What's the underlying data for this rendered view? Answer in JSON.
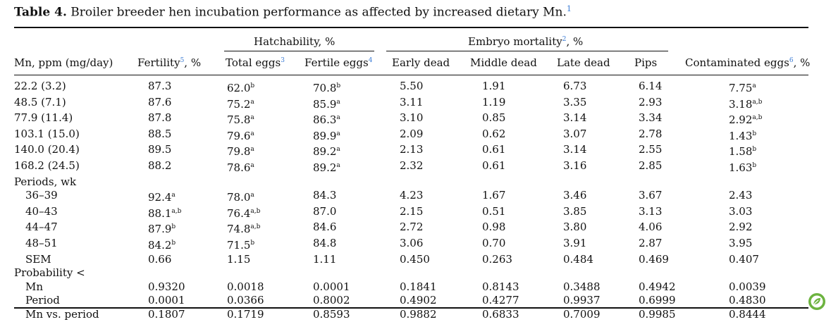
{
  "caption": {
    "label": "Table 4.",
    "text": "Broiler breeder hen incubation performance as affected by increased dietary Mn.",
    "footnote": "1"
  },
  "headers": {
    "group_hatchability": "Hatchability, %",
    "group_embryo": "Embryo mortality",
    "group_embryo_note": "2",
    "group_embryo_suffix": ", %",
    "mn": "Mn, ppm (mg/day)",
    "fertility": "Fertility",
    "fertility_note": "5",
    "fertility_suffix": ", %",
    "total_eggs": "Total eggs",
    "total_eggs_note": "3",
    "fertile_eggs": "Fertile eggs",
    "fertile_eggs_note": "4",
    "early_dead": "Early dead",
    "middle_dead": "Middle dead",
    "late_dead": "Late dead",
    "pips": "Pips",
    "contaminated": "Contaminated eggs",
    "contaminated_note": "6",
    "contaminated_suffix": ", %"
  },
  "rows": [
    {
      "label": "22.2 (3.2)",
      "indent": false,
      "cells": [
        [
          "87.3",
          ""
        ],
        [
          "62.0",
          "b"
        ],
        [
          "70.8",
          "b"
        ],
        [
          "5.50",
          ""
        ],
        [
          "1.91",
          ""
        ],
        [
          "6.73",
          ""
        ],
        [
          "6.14",
          ""
        ],
        [
          "7.75",
          "a"
        ]
      ]
    },
    {
      "label": "48.5 (7.1)",
      "indent": false,
      "cells": [
        [
          "87.6",
          ""
        ],
        [
          "75.2",
          "a"
        ],
        [
          "85.9",
          "a"
        ],
        [
          "3.11",
          ""
        ],
        [
          "1.19",
          ""
        ],
        [
          "3.35",
          ""
        ],
        [
          "2.93",
          ""
        ],
        [
          "3.18",
          "a,b"
        ]
      ]
    },
    {
      "label": "77.9 (11.4)",
      "indent": false,
      "cells": [
        [
          "87.8",
          ""
        ],
        [
          "75.8",
          "a"
        ],
        [
          "86.3",
          "a"
        ],
        [
          "3.10",
          ""
        ],
        [
          "0.85",
          ""
        ],
        [
          "3.14",
          ""
        ],
        [
          "3.34",
          ""
        ],
        [
          "2.92",
          "a,b"
        ]
      ]
    },
    {
      "label": "103.1 (15.0)",
      "indent": false,
      "cells": [
        [
          "88.5",
          ""
        ],
        [
          "79.6",
          "a"
        ],
        [
          "89.9",
          "a"
        ],
        [
          "2.09",
          ""
        ],
        [
          "0.62",
          ""
        ],
        [
          "3.07",
          ""
        ],
        [
          "2.78",
          ""
        ],
        [
          "1.43",
          "b"
        ]
      ]
    },
    {
      "label": "140.0 (20.4)",
      "indent": false,
      "cells": [
        [
          "89.5",
          ""
        ],
        [
          "79.8",
          "a"
        ],
        [
          "89.2",
          "a"
        ],
        [
          "2.13",
          ""
        ],
        [
          "0.61",
          ""
        ],
        [
          "3.14",
          ""
        ],
        [
          "2.55",
          ""
        ],
        [
          "1.58",
          "b"
        ]
      ]
    },
    {
      "label": "168.2 (24.5)",
      "indent": false,
      "cells": [
        [
          "88.2",
          ""
        ],
        [
          "78.6",
          "a"
        ],
        [
          "89.2",
          "a"
        ],
        [
          "2.32",
          ""
        ],
        [
          "0.61",
          ""
        ],
        [
          "3.16",
          ""
        ],
        [
          "2.85",
          ""
        ],
        [
          "1.63",
          "b"
        ]
      ]
    },
    {
      "label": "Periods, wk",
      "indent": false,
      "cells": []
    },
    {
      "label": "36–39",
      "indent": true,
      "cells": [
        [
          "92.4",
          "a"
        ],
        [
          "78.0",
          "a"
        ],
        [
          "84.3",
          ""
        ],
        [
          "4.23",
          ""
        ],
        [
          "1.67",
          ""
        ],
        [
          "3.46",
          ""
        ],
        [
          "3.67",
          ""
        ],
        [
          "2.43",
          ""
        ]
      ]
    },
    {
      "label": "40–43",
      "indent": true,
      "cells": [
        [
          "88.1",
          "a,b"
        ],
        [
          "76.4",
          "a,b"
        ],
        [
          "87.0",
          ""
        ],
        [
          "2.15",
          ""
        ],
        [
          "0.51",
          ""
        ],
        [
          "3.85",
          ""
        ],
        [
          "3.13",
          ""
        ],
        [
          "3.03",
          ""
        ]
      ]
    },
    {
      "label": "44–47",
      "indent": true,
      "cells": [
        [
          "87.9",
          "b"
        ],
        [
          "74.8",
          "a,b"
        ],
        [
          "84.6",
          ""
        ],
        [
          "2.72",
          ""
        ],
        [
          "0.98",
          ""
        ],
        [
          "3.80",
          ""
        ],
        [
          "4.06",
          ""
        ],
        [
          "2.92",
          ""
        ]
      ]
    },
    {
      "label": "48–51",
      "indent": true,
      "cells": [
        [
          "84.2",
          "b"
        ],
        [
          "71.5",
          "b"
        ],
        [
          "84.8",
          ""
        ],
        [
          "3.06",
          ""
        ],
        [
          "0.70",
          ""
        ],
        [
          "3.91",
          ""
        ],
        [
          "2.87",
          ""
        ],
        [
          "3.95",
          ""
        ]
      ]
    },
    {
      "label": "SEM",
      "indent": true,
      "cells": [
        [
          "0.66",
          ""
        ],
        [
          "1.15",
          ""
        ],
        [
          "1.11",
          ""
        ],
        [
          "0.450",
          ""
        ],
        [
          "0.263",
          ""
        ],
        [
          "0.484",
          ""
        ],
        [
          "0.469",
          ""
        ],
        [
          "0.407",
          ""
        ]
      ]
    },
    {
      "label": "Probability <",
      "indent": false,
      "cells": []
    },
    {
      "label": "Mn",
      "indent": true,
      "cells": [
        [
          "0.9320",
          ""
        ],
        [
          "0.0018",
          ""
        ],
        [
          "0.0001",
          ""
        ],
        [
          "0.1841",
          ""
        ],
        [
          "0.8143",
          ""
        ],
        [
          "0.3488",
          ""
        ],
        [
          "0.4942",
          ""
        ],
        [
          "0.0039",
          ""
        ]
      ]
    },
    {
      "label": "Period",
      "indent": true,
      "cells": [
        [
          "0.0001",
          ""
        ],
        [
          "0.0366",
          ""
        ],
        [
          "0.8002",
          ""
        ],
        [
          "0.4902",
          ""
        ],
        [
          "0.4277",
          ""
        ],
        [
          "0.9937",
          ""
        ],
        [
          "0.6999",
          ""
        ],
        [
          "0.4830",
          ""
        ]
      ]
    },
    {
      "label": "Mn vs. period",
      "indent": true,
      "cells": [
        [
          "0.1807",
          ""
        ],
        [
          "0.1719",
          ""
        ],
        [
          "0.8593",
          ""
        ],
        [
          "0.9882",
          ""
        ],
        [
          "0.6833",
          ""
        ],
        [
          "0.7009",
          ""
        ],
        [
          "0.9985",
          ""
        ],
        [
          "0.8444",
          ""
        ]
      ]
    }
  ],
  "colors": {
    "footnote_marker": "#3a7bd5",
    "logo_green": "#6cb33f"
  },
  "logo_icon": "leaf-logo-icon"
}
